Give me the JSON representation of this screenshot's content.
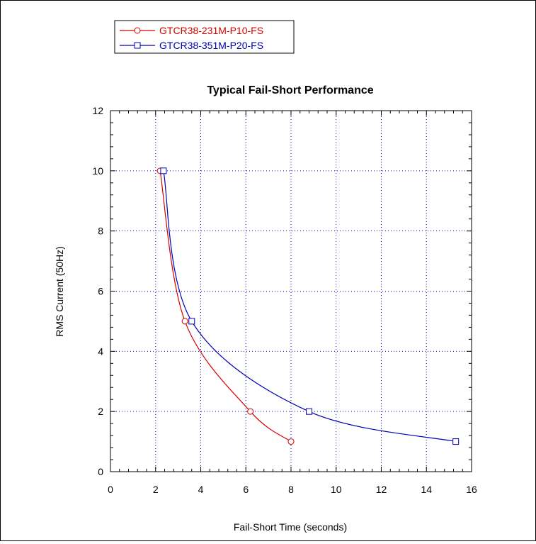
{
  "chart_data": {
    "type": "line",
    "title": "Typical Fail-Short Performance",
    "xlabel": "Fail-Short Time (seconds)",
    "ylabel": "RMS Current (50Hz)",
    "xlim": [
      0,
      16
    ],
    "ylim": [
      0,
      12
    ],
    "xticks": [
      0,
      2,
      4,
      6,
      8,
      10,
      12,
      14,
      16
    ],
    "yticks": [
      0,
      2,
      4,
      6,
      8,
      10,
      12
    ],
    "grid": true,
    "legend_position": "top-left",
    "series": [
      {
        "name": "GTCR38-231M-P10-FS",
        "color": "#d40000",
        "marker": "circle",
        "points": [
          [
            2.2,
            10
          ],
          [
            3.3,
            5
          ],
          [
            6.2,
            2
          ],
          [
            8.0,
            1
          ]
        ]
      },
      {
        "name": "GTCR38-351M-P20-FS",
        "color": "#0000b4",
        "marker": "square",
        "points": [
          [
            2.35,
            10
          ],
          [
            3.6,
            5
          ],
          [
            8.8,
            2
          ],
          [
            15.3,
            1
          ]
        ]
      }
    ]
  }
}
